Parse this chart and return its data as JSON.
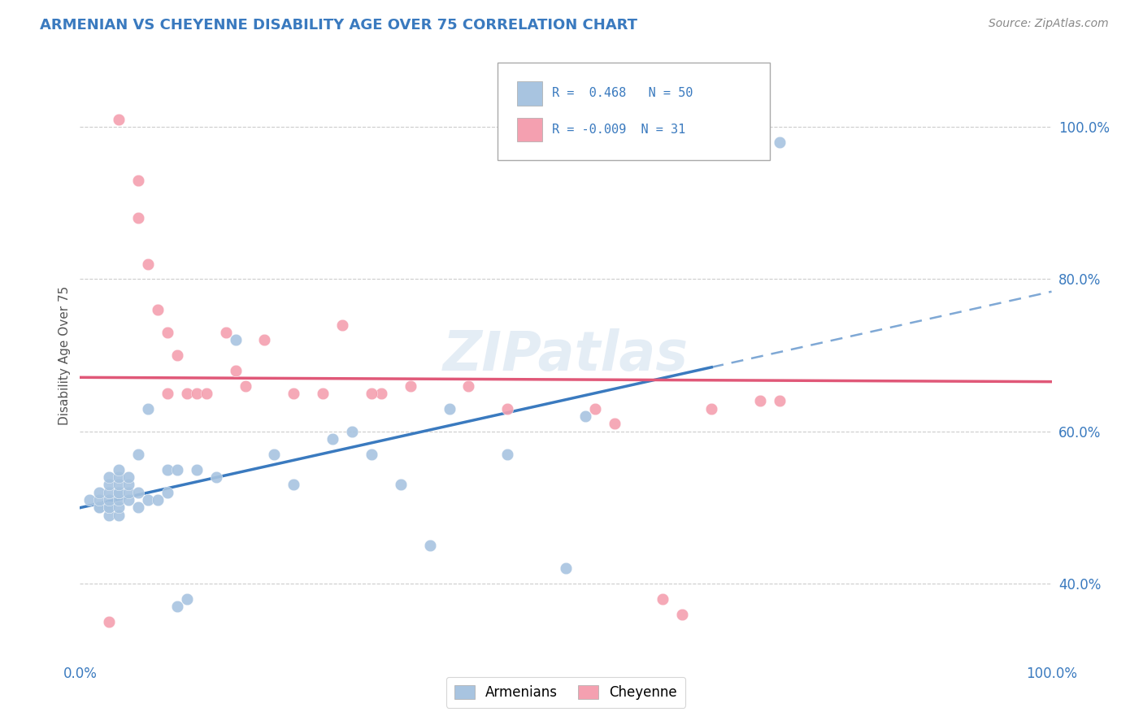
{
  "title": "ARMENIAN VS CHEYENNE DISABILITY AGE OVER 75 CORRELATION CHART",
  "source": "Source: ZipAtlas.com",
  "ylabel": "Disability Age Over 75",
  "xlim": [
    0.0,
    1.0
  ],
  "ylim": [
    0.3,
    1.1
  ],
  "ytick_positions": [
    0.4,
    0.6,
    0.8,
    1.0
  ],
  "ytick_labels": [
    "40.0%",
    "60.0%",
    "80.0%",
    "100.0%"
  ],
  "armenian_color": "#a8c4e0",
  "cheyenne_color": "#f4a0b0",
  "armenian_R": 0.468,
  "armenian_N": 50,
  "cheyenne_R": -0.009,
  "cheyenne_N": 31,
  "armenian_line_color": "#3a7abf",
  "cheyenne_line_color": "#e05878",
  "watermark": "ZIPatlas",
  "armenian_x": [
    0.01,
    0.02,
    0.02,
    0.02,
    0.02,
    0.03,
    0.03,
    0.03,
    0.03,
    0.03,
    0.03,
    0.03,
    0.04,
    0.04,
    0.04,
    0.04,
    0.04,
    0.04,
    0.04,
    0.04,
    0.05,
    0.05,
    0.05,
    0.05,
    0.06,
    0.06,
    0.06,
    0.07,
    0.07,
    0.08,
    0.09,
    0.09,
    0.1,
    0.1,
    0.11,
    0.12,
    0.14,
    0.16,
    0.2,
    0.22,
    0.26,
    0.28,
    0.3,
    0.33,
    0.36,
    0.38,
    0.44,
    0.5,
    0.52,
    0.72
  ],
  "armenian_y": [
    0.51,
    0.5,
    0.5,
    0.51,
    0.52,
    0.49,
    0.5,
    0.5,
    0.51,
    0.52,
    0.53,
    0.54,
    0.49,
    0.5,
    0.51,
    0.52,
    0.52,
    0.53,
    0.54,
    0.55,
    0.51,
    0.52,
    0.53,
    0.54,
    0.5,
    0.52,
    0.57,
    0.51,
    0.63,
    0.51,
    0.52,
    0.55,
    0.37,
    0.55,
    0.38,
    0.55,
    0.54,
    0.72,
    0.57,
    0.53,
    0.59,
    0.6,
    0.57,
    0.53,
    0.45,
    0.63,
    0.57,
    0.42,
    0.62,
    0.98
  ],
  "cheyenne_x": [
    0.03,
    0.04,
    0.06,
    0.06,
    0.07,
    0.08,
    0.09,
    0.09,
    0.1,
    0.11,
    0.12,
    0.13,
    0.15,
    0.16,
    0.17,
    0.19,
    0.22,
    0.25,
    0.27,
    0.31,
    0.34,
    0.4,
    0.44,
    0.53,
    0.55,
    0.6,
    0.62,
    0.65,
    0.7,
    0.72,
    0.3
  ],
  "cheyenne_y": [
    0.35,
    1.01,
    0.88,
    0.93,
    0.82,
    0.76,
    0.73,
    0.65,
    0.7,
    0.65,
    0.65,
    0.65,
    0.73,
    0.68,
    0.66,
    0.72,
    0.65,
    0.65,
    0.74,
    0.65,
    0.66,
    0.66,
    0.63,
    0.63,
    0.61,
    0.38,
    0.36,
    0.63,
    0.64,
    0.64,
    0.65
  ]
}
